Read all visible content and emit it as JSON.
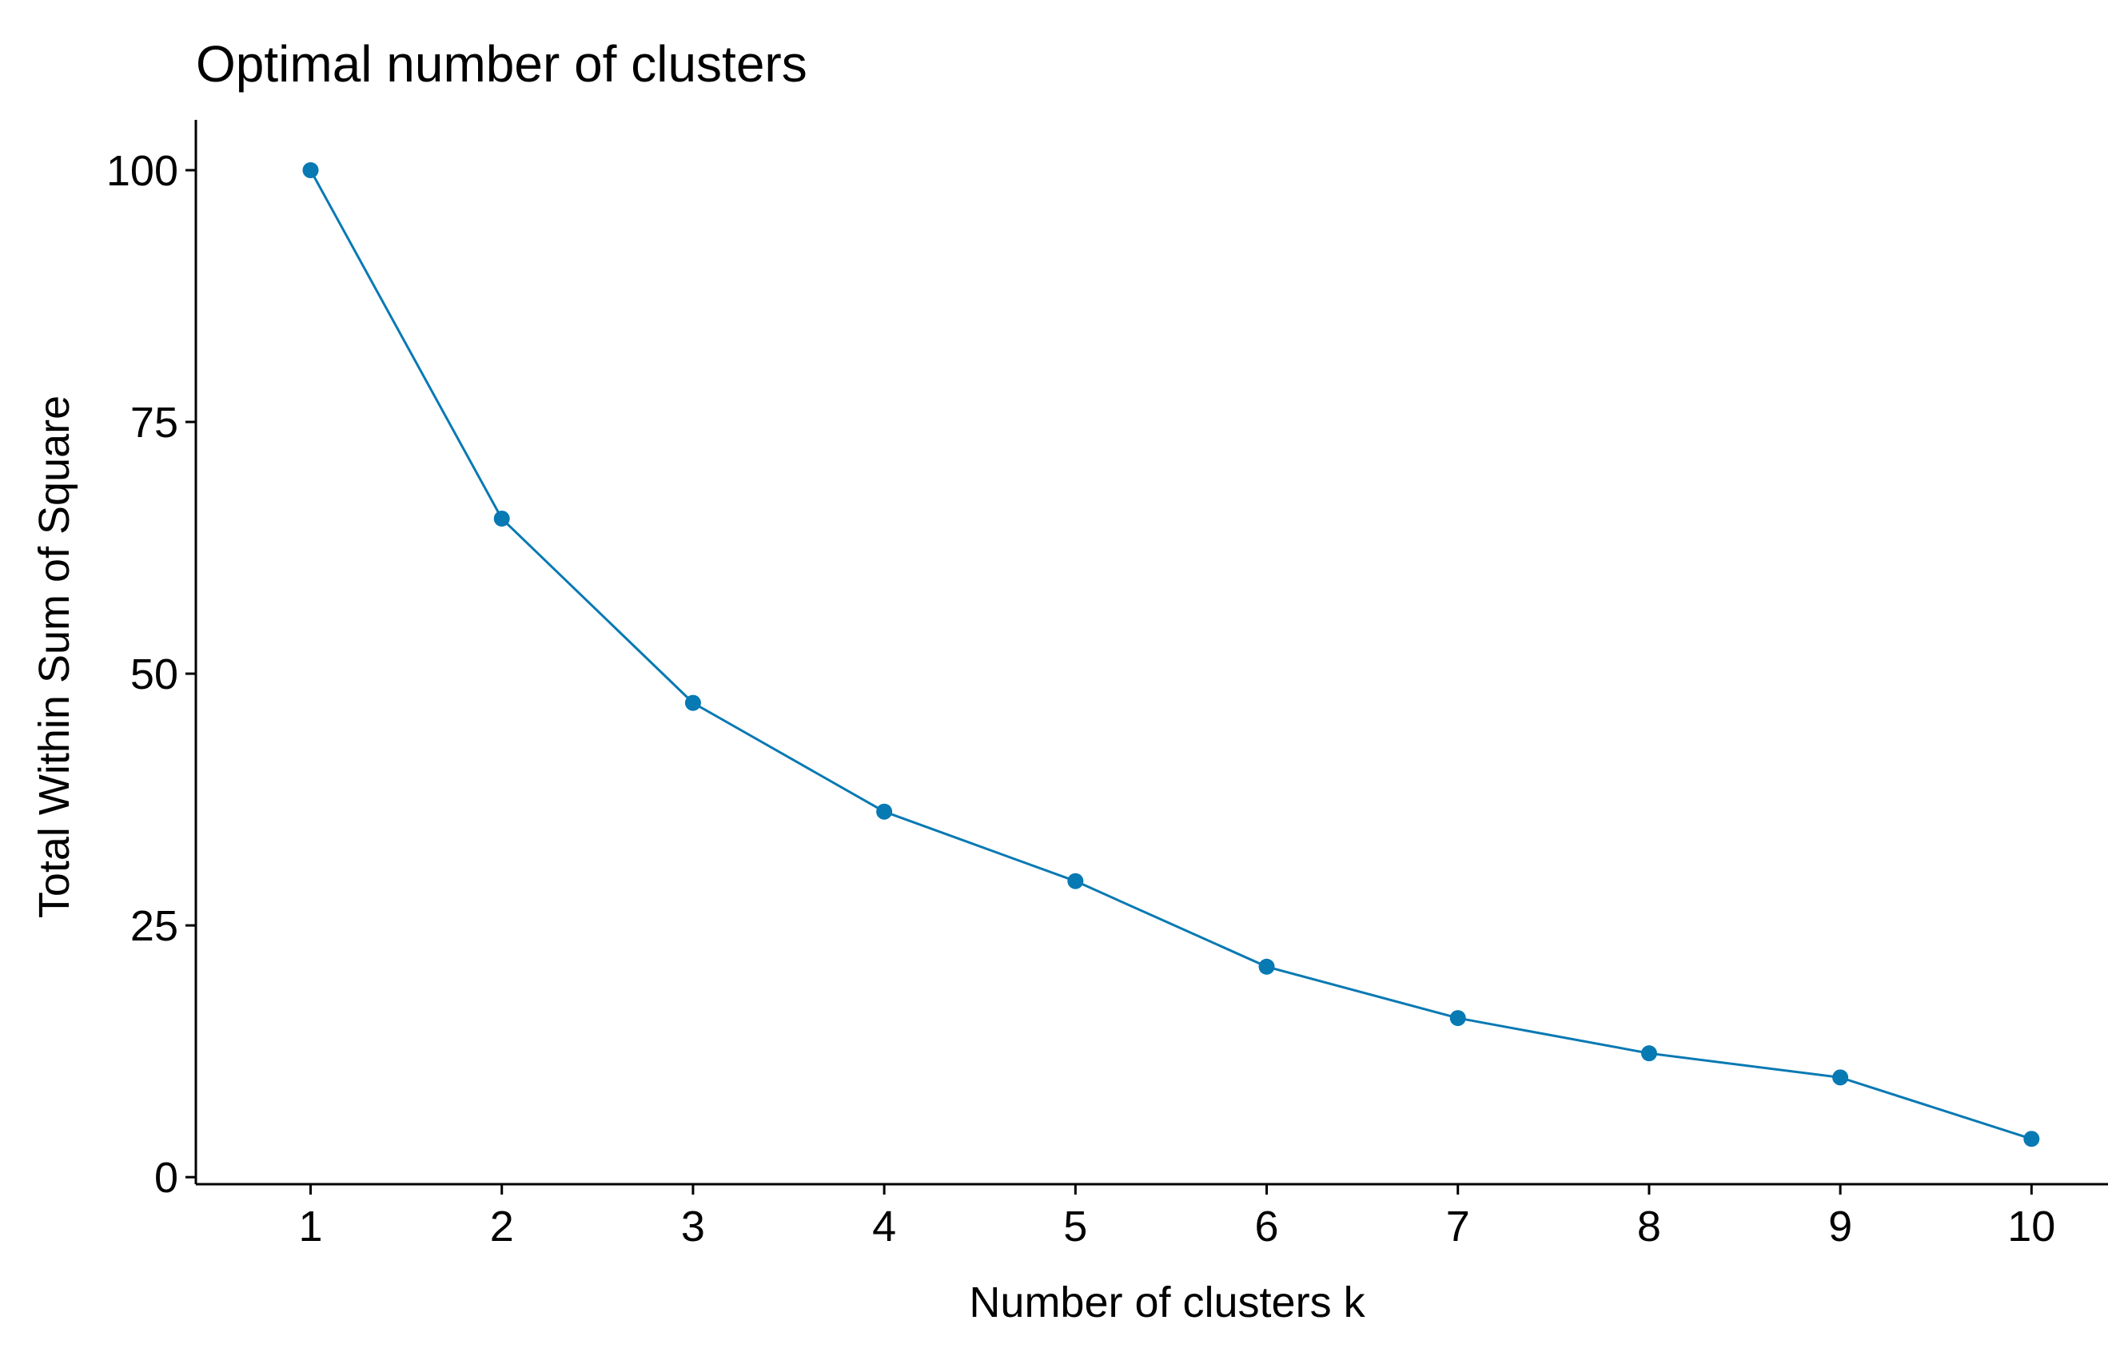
{
  "chart_data": {
    "type": "line",
    "title": "Optimal number of clusters",
    "xlabel": "Number of clusters k",
    "ylabel": "Total Within Sum of Square",
    "x": [
      1,
      2,
      3,
      4,
      5,
      6,
      7,
      8,
      9,
      10
    ],
    "x_tick_labels": [
      "1",
      "2",
      "3",
      "4",
      "5",
      "6",
      "7",
      "8",
      "9",
      "10"
    ],
    "series": [
      {
        "values": [
          100,
          65.4,
          47.1,
          36.3,
          29.4,
          20.9,
          15.8,
          12.3,
          9.9,
          3.8
        ],
        "color": "#0779B3"
      }
    ],
    "y_ticks": [
      0,
      25,
      50,
      75,
      100
    ],
    "y_tick_labels": [
      "0",
      "25",
      "50",
      "75",
      "100"
    ],
    "xlim": [
      0.4,
      10.4
    ],
    "ylim": [
      -0.7,
      105
    ],
    "grid": false,
    "legend": "none"
  }
}
